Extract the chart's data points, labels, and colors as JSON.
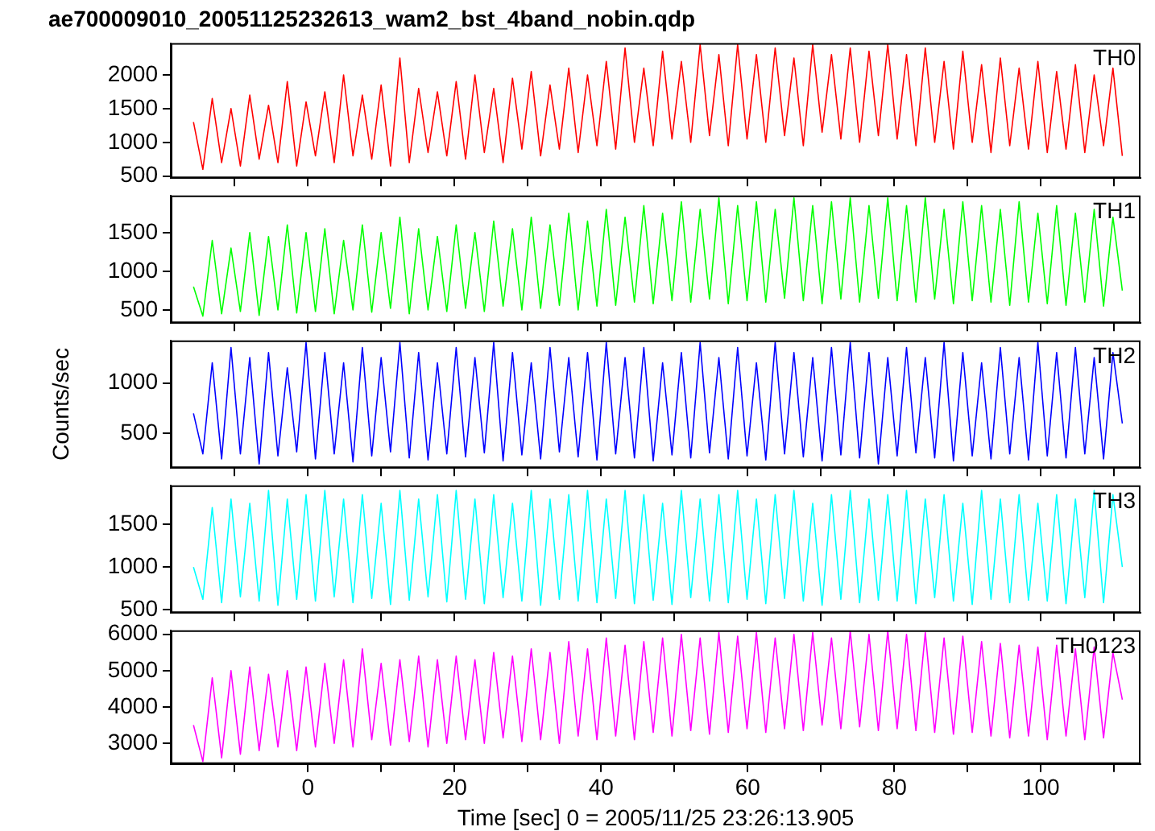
{
  "chart_data": [
    {
      "type": "line",
      "title": "ae700009010_20051125232613_wam2_bst_4band_nobin.qdp",
      "tick_labels": "y",
      "x": [
        -15.6,
        -14.32,
        -13.04,
        -11.76,
        -10.48,
        -9.2,
        -7.92,
        -6.64,
        -5.36,
        -4.08,
        -2.8,
        -1.52,
        -0.24,
        1.04,
        2.32,
        3.6,
        4.88,
        6.16,
        7.44,
        8.72,
        10,
        11.28,
        12.56,
        13.84,
        15.12,
        16.4,
        17.68,
        18.96,
        20.24,
        21.52,
        22.8,
        24.08,
        25.36,
        26.64,
        27.92,
        29.2,
        30.48,
        31.76,
        33.04,
        34.32,
        35.6,
        36.88,
        38.16,
        39.44,
        40.72,
        42,
        43.28,
        44.56,
        45.84,
        47.12,
        48.4,
        49.68,
        50.96,
        52.24,
        53.52,
        54.8,
        56.08,
        57.36,
        58.64,
        59.92,
        61.2,
        62.48,
        63.76,
        65.04,
        66.32,
        67.6,
        68.88,
        70.16,
        71.44,
        72.72,
        74,
        75.28,
        76.56,
        77.84,
        79.12,
        80.4,
        81.68,
        82.96,
        84.24,
        85.52,
        86.8,
        88.08,
        89.36,
        90.64,
        91.92,
        93.2,
        94.48,
        95.76,
        97.04,
        98.32,
        99.6,
        100.88,
        102.16,
        103.44,
        104.72,
        106,
        107.28,
        108.56,
        109.84,
        111.12
      ],
      "xlim": [
        -18.7,
        113.6
      ],
      "xticks": [
        {
          "value": -10,
          "label": null
        },
        0,
        {
          "value": 10,
          "label": null
        },
        20,
        {
          "value": 30,
          "label": null
        },
        40,
        {
          "value": 50,
          "label": null
        },
        60,
        {
          "value": 70,
          "label": null
        },
        80,
        {
          "value": 90,
          "label": null
        },
        100,
        {
          "value": 110,
          "label": null
        }
      ],
      "ylim": [
        470,
        2470
      ],
      "yticks": [
        500,
        1000,
        1500,
        2000
      ],
      "series": [
        {
          "name": "TH0",
          "color": "#ff0000",
          "values": [
            1300,
            600,
            1650,
            700,
            1500,
            650,
            1700,
            750,
            1550,
            700,
            1900,
            650,
            1600,
            800,
            1750,
            700,
            2000,
            800,
            1700,
            750,
            1850,
            650,
            2250,
            700,
            1800,
            850,
            1750,
            800,
            1900,
            750,
            2000,
            850,
            1800,
            700,
            1950,
            900,
            2050,
            800,
            1850,
            900,
            2100,
            850,
            2000,
            950,
            2200,
            900,
            2400,
            1000,
            2100,
            950,
            2350,
            1050,
            2200,
            1000,
            2450,
            1100,
            2300,
            950,
            2450,
            1050,
            2300,
            1000,
            2400,
            1100,
            2250,
            950,
            2450,
            1150,
            2300,
            1050,
            2400,
            1000,
            2350,
            1100,
            2450,
            1050,
            2300,
            950,
            2400,
            1000,
            2200,
            900,
            2350,
            1000,
            2150,
            850,
            2250,
            950,
            2100,
            900,
            2200,
            850,
            2050,
            900,
            2150,
            850,
            2000,
            950,
            2100,
            800
          ]
        }
      ]
    },
    {
      "type": "line",
      "tick_labels": "y",
      "x": [
        -15.6,
        -14.32,
        -13.04,
        -11.76,
        -10.48,
        -9.2,
        -7.92,
        -6.64,
        -5.36,
        -4.08,
        -2.8,
        -1.52,
        -0.24,
        1.04,
        2.32,
        3.6,
        4.88,
        6.16,
        7.44,
        8.72,
        10,
        11.28,
        12.56,
        13.84,
        15.12,
        16.4,
        17.68,
        18.96,
        20.24,
        21.52,
        22.8,
        24.08,
        25.36,
        26.64,
        27.92,
        29.2,
        30.48,
        31.76,
        33.04,
        34.32,
        35.6,
        36.88,
        38.16,
        39.44,
        40.72,
        42,
        43.28,
        44.56,
        45.84,
        47.12,
        48.4,
        49.68,
        50.96,
        52.24,
        53.52,
        54.8,
        56.08,
        57.36,
        58.64,
        59.92,
        61.2,
        62.48,
        63.76,
        65.04,
        66.32,
        67.6,
        68.88,
        70.16,
        71.44,
        72.72,
        74,
        75.28,
        76.56,
        77.84,
        79.12,
        80.4,
        81.68,
        82.96,
        84.24,
        85.52,
        86.8,
        88.08,
        89.36,
        90.64,
        91.92,
        93.2,
        94.48,
        95.76,
        97.04,
        98.32,
        99.6,
        100.88,
        102.16,
        103.44,
        104.72,
        106,
        107.28,
        108.56,
        109.84,
        111.12
      ],
      "xlim": [
        -18.7,
        113.6
      ],
      "xticks": [
        {
          "value": -10,
          "label": null
        },
        0,
        {
          "value": 10,
          "label": null
        },
        20,
        {
          "value": 30,
          "label": null
        },
        40,
        {
          "value": 50,
          "label": null
        },
        60,
        {
          "value": 70,
          "label": null
        },
        80,
        {
          "value": 90,
          "label": null
        },
        100,
        {
          "value": 110,
          "label": null
        }
      ],
      "ylim": [
        330,
        1980
      ],
      "yticks": [
        500,
        1000,
        1500
      ],
      "series": [
        {
          "name": "TH1",
          "color": "#00ff00",
          "values": [
            800,
            420,
            1400,
            450,
            1300,
            480,
            1500,
            430,
            1450,
            500,
            1600,
            460,
            1500,
            480,
            1550,
            450,
            1400,
            500,
            1600,
            470,
            1500,
            520,
            1700,
            450,
            1550,
            500,
            1450,
            480,
            1600,
            520,
            1500,
            480,
            1650,
            550,
            1550,
            500,
            1700,
            520,
            1600,
            560,
            1750,
            500,
            1650,
            550,
            1800,
            560,
            1700,
            600,
            1850,
            580,
            1750,
            620,
            1900,
            600,
            1800,
            640,
            1950,
            580,
            1850,
            620,
            1900,
            600,
            1800,
            650,
            1950,
            620,
            1850,
            580,
            1900,
            640,
            1950,
            600,
            1850,
            650,
            1950,
            620,
            1850,
            600,
            1950,
            640,
            1800,
            580,
            1900,
            620,
            1850,
            600,
            1800,
            560,
            1900,
            600,
            1750,
            580,
            1850,
            560,
            1750,
            600,
            1800,
            550,
            1700,
            750
          ]
        }
      ]
    },
    {
      "type": "line",
      "tick_labels": "y",
      "ylabel": "Counts/sec",
      "x": [
        -15.6,
        -14.32,
        -13.04,
        -11.76,
        -10.48,
        -9.2,
        -7.92,
        -6.64,
        -5.36,
        -4.08,
        -2.8,
        -1.52,
        -0.24,
        1.04,
        2.32,
        3.6,
        4.88,
        6.16,
        7.44,
        8.72,
        10,
        11.28,
        12.56,
        13.84,
        15.12,
        16.4,
        17.68,
        18.96,
        20.24,
        21.52,
        22.8,
        24.08,
        25.36,
        26.64,
        27.92,
        29.2,
        30.48,
        31.76,
        33.04,
        34.32,
        35.6,
        36.88,
        38.16,
        39.44,
        40.72,
        42,
        43.28,
        44.56,
        45.84,
        47.12,
        48.4,
        49.68,
        50.96,
        52.24,
        53.52,
        54.8,
        56.08,
        57.36,
        58.64,
        59.92,
        61.2,
        62.48,
        63.76,
        65.04,
        66.32,
        67.6,
        68.88,
        70.16,
        71.44,
        72.72,
        74,
        75.28,
        76.56,
        77.84,
        79.12,
        80.4,
        81.68,
        82.96,
        84.24,
        85.52,
        86.8,
        88.08,
        89.36,
        90.64,
        91.92,
        93.2,
        94.48,
        95.76,
        97.04,
        98.32,
        99.6,
        100.88,
        102.16,
        103.44,
        104.72,
        106,
        107.28,
        108.56,
        109.84,
        111.12
      ],
      "xlim": [
        -18.7,
        113.6
      ],
      "xticks": [
        {
          "value": -10,
          "label": null
        },
        0,
        {
          "value": 10,
          "label": null
        },
        20,
        {
          "value": 30,
          "label": null
        },
        40,
        {
          "value": 50,
          "label": null
        },
        60,
        {
          "value": 70,
          "label": null
        },
        80,
        {
          "value": 90,
          "label": null
        },
        100,
        {
          "value": 110,
          "label": null
        }
      ],
      "ylim": [
        160,
        1420
      ],
      "yticks": [
        500,
        1000
      ],
      "series": [
        {
          "name": "TH2",
          "color": "#0000ff",
          "values": [
            700,
            300,
            1200,
            250,
            1350,
            300,
            1250,
            200,
            1300,
            280,
            1150,
            320,
            1400,
            250,
            1300,
            300,
            1200,
            220,
            1350,
            280,
            1250,
            320,
            1400,
            260,
            1300,
            240,
            1200,
            300,
            1350,
            270,
            1250,
            310,
            1400,
            230,
            1300,
            290,
            1200,
            250,
            1350,
            320,
            1250,
            270,
            1300,
            240,
            1400,
            300,
            1250,
            260,
            1350,
            230,
            1200,
            290,
            1300,
            260,
            1400,
            310,
            1250,
            250,
            1350,
            280,
            1200,
            240,
            1400,
            300,
            1300,
            270,
            1250,
            230,
            1350,
            290,
            1400,
            260,
            1300,
            200,
            1250,
            280,
            1350,
            310,
            1250,
            260,
            1400,
            230,
            1300,
            280,
            1200,
            250,
            1350,
            300,
            1250,
            240,
            1400,
            280,
            1300,
            260,
            1350,
            300,
            1250,
            250,
            1300,
            600
          ]
        }
      ]
    },
    {
      "type": "line",
      "tick_labels": "y",
      "x": [
        -15.6,
        -14.32,
        -13.04,
        -11.76,
        -10.48,
        -9.2,
        -7.92,
        -6.64,
        -5.36,
        -4.08,
        -2.8,
        -1.52,
        -0.24,
        1.04,
        2.32,
        3.6,
        4.88,
        6.16,
        7.44,
        8.72,
        10,
        11.28,
        12.56,
        13.84,
        15.12,
        16.4,
        17.68,
        18.96,
        20.24,
        21.52,
        22.8,
        24.08,
        25.36,
        26.64,
        27.92,
        29.2,
        30.48,
        31.76,
        33.04,
        34.32,
        35.6,
        36.88,
        38.16,
        39.44,
        40.72,
        42,
        43.28,
        44.56,
        45.84,
        47.12,
        48.4,
        49.68,
        50.96,
        52.24,
        53.52,
        54.8,
        56.08,
        57.36,
        58.64,
        59.92,
        61.2,
        62.48,
        63.76,
        65.04,
        66.32,
        67.6,
        68.88,
        70.16,
        71.44,
        72.72,
        74,
        75.28,
        76.56,
        77.84,
        79.12,
        80.4,
        81.68,
        82.96,
        84.24,
        85.52,
        86.8,
        88.08,
        89.36,
        90.64,
        91.92,
        93.2,
        94.48,
        95.76,
        97.04,
        98.32,
        99.6,
        100.88,
        102.16,
        103.44,
        104.72,
        106,
        107.28,
        108.56,
        109.84,
        111.12
      ],
      "xlim": [
        -18.7,
        113.6
      ],
      "xticks": [
        {
          "value": -10,
          "label": null
        },
        0,
        {
          "value": 10,
          "label": null
        },
        20,
        {
          "value": 30,
          "label": null
        },
        40,
        {
          "value": 50,
          "label": null
        },
        60,
        {
          "value": 70,
          "label": null
        },
        80,
        {
          "value": 90,
          "label": null
        },
        100,
        {
          "value": 110,
          "label": null
        }
      ],
      "ylim": [
        460,
        1960
      ],
      "yticks": [
        500,
        1000,
        1500
      ],
      "series": [
        {
          "name": "TH3",
          "color": "#00ffff",
          "values": [
            1000,
            620,
            1700,
            580,
            1800,
            650,
            1750,
            600,
            1900,
            550,
            1800,
            620,
            1850,
            600,
            1900,
            650,
            1800,
            580,
            1850,
            630,
            1750,
            560,
            1900,
            610,
            1800,
            650,
            1850,
            590,
            1900,
            620,
            1800,
            570,
            1850,
            640,
            1750,
            600,
            1900,
            550,
            1800,
            620,
            1850,
            600,
            1900,
            580,
            1800,
            630,
            1900,
            570,
            1850,
            610,
            1750,
            560,
            1900,
            640,
            1800,
            600,
            1850,
            580,
            1900,
            620,
            1800,
            570,
            1850,
            630,
            1900,
            600,
            1750,
            550,
            1850,
            620,
            1900,
            580,
            1800,
            610,
            1850,
            600,
            1900,
            570,
            1800,
            640,
            1850,
            600,
            1750,
            560,
            1900,
            620,
            1800,
            580,
            1850,
            610,
            1750,
            600,
            1850,
            570,
            1800,
            640,
            1900,
            580,
            1850,
            1000
          ]
        }
      ]
    },
    {
      "type": "line",
      "xlabel": "Time [sec] 0 = 2005/11/25 23:26:13.905",
      "x": [
        -15.6,
        -14.32,
        -13.04,
        -11.76,
        -10.48,
        -9.2,
        -7.92,
        -6.64,
        -5.36,
        -4.08,
        -2.8,
        -1.52,
        -0.24,
        1.04,
        2.32,
        3.6,
        4.88,
        6.16,
        7.44,
        8.72,
        10,
        11.28,
        12.56,
        13.84,
        15.12,
        16.4,
        17.68,
        18.96,
        20.24,
        21.52,
        22.8,
        24.08,
        25.36,
        26.64,
        27.92,
        29.2,
        30.48,
        31.76,
        33.04,
        34.32,
        35.6,
        36.88,
        38.16,
        39.44,
        40.72,
        42,
        43.28,
        44.56,
        45.84,
        47.12,
        48.4,
        49.68,
        50.96,
        52.24,
        53.52,
        54.8,
        56.08,
        57.36,
        58.64,
        59.92,
        61.2,
        62.48,
        63.76,
        65.04,
        66.32,
        67.6,
        68.88,
        70.16,
        71.44,
        72.72,
        74,
        75.28,
        76.56,
        77.84,
        79.12,
        80.4,
        81.68,
        82.96,
        84.24,
        85.52,
        86.8,
        88.08,
        89.36,
        90.64,
        91.92,
        93.2,
        94.48,
        95.76,
        97.04,
        98.32,
        99.6,
        100.88,
        102.16,
        103.44,
        104.72,
        106,
        107.28,
        108.56,
        109.84,
        111.12
      ],
      "xlim": [
        -18.7,
        113.6
      ],
      "xticks": [
        {
          "value": -10,
          "label": null
        },
        0,
        {
          "value": 10,
          "label": null
        },
        20,
        {
          "value": 30,
          "label": null
        },
        40,
        {
          "value": 50,
          "label": null
        },
        60,
        {
          "value": 70,
          "label": null
        },
        80,
        {
          "value": 90,
          "label": null
        },
        100,
        {
          "value": 110,
          "label": null
        }
      ],
      "ylim": [
        2430,
        6110
      ],
      "yticks": [
        3000,
        4000,
        5000,
        6000
      ],
      "series": [
        {
          "name": "TH0123",
          "color": "#ff00ff",
          "values": [
            3500,
            2500,
            4800,
            2600,
            5000,
            2700,
            5100,
            2800,
            4900,
            2900,
            5000,
            2800,
            5100,
            2900,
            5200,
            3000,
            5300,
            2900,
            5600,
            3100,
            5200,
            2950,
            5300,
            3050,
            5400,
            2900,
            5300,
            3000,
            5400,
            3100,
            5300,
            3000,
            5500,
            3150,
            5400,
            3050,
            5600,
            3100,
            5500,
            3000,
            5800,
            3200,
            5600,
            3100,
            5900,
            3200,
            5700,
            3100,
            5800,
            3300,
            5900,
            3200,
            6000,
            3350,
            5900,
            3250,
            6050,
            3300,
            5950,
            3400,
            6050,
            3300,
            5900,
            3400,
            6000,
            3350,
            6050,
            3500,
            5900,
            3400,
            6100,
            3450,
            6000,
            3350,
            6100,
            3400,
            6000,
            3350,
            6050,
            3300,
            5900,
            3250,
            5950,
            3300,
            5800,
            3200,
            5750,
            3150,
            5700,
            3200,
            5650,
            3100,
            5700,
            3200,
            5600,
            3100,
            5650,
            3150,
            5500,
            4200
          ]
        }
      ]
    }
  ]
}
